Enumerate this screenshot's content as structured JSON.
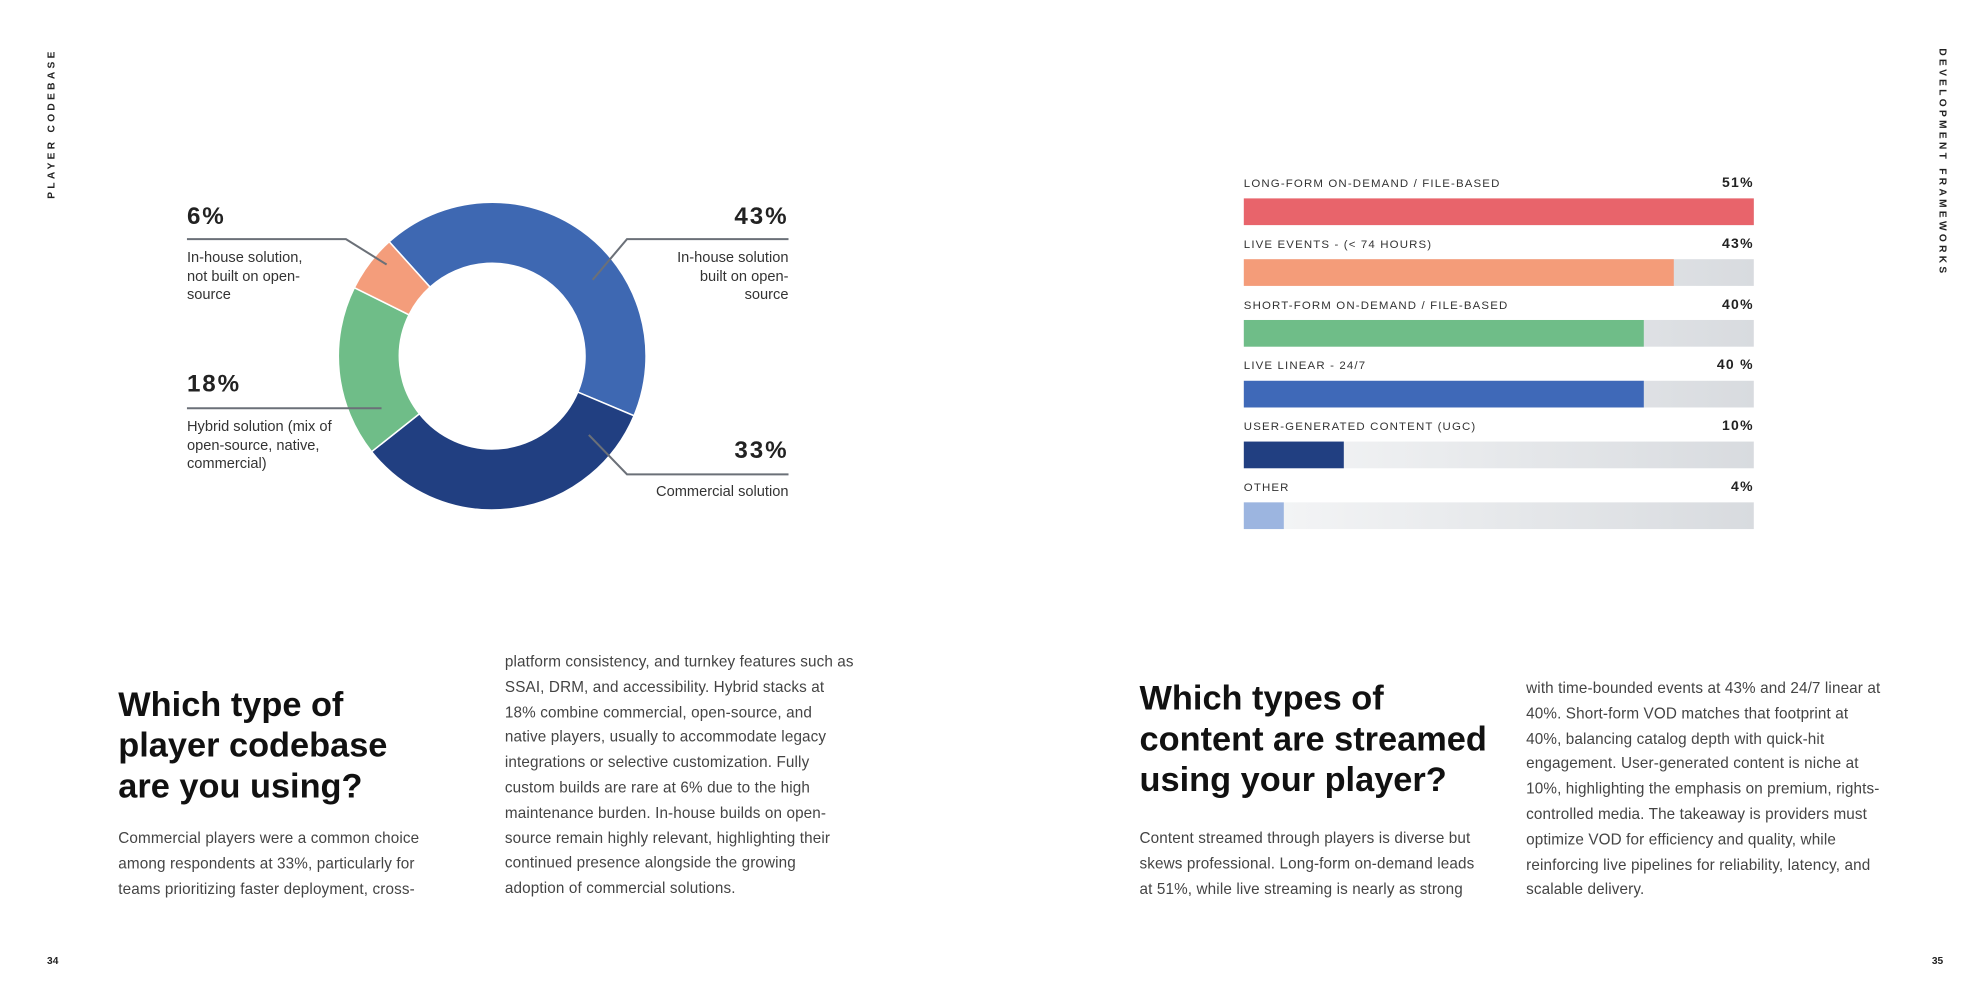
{
  "side_labels": {
    "left": "PLAYER CODEBASE",
    "right": "DEVELOPMENT FRAMEWORKS"
  },
  "page_numbers": [
    "34",
    "35"
  ],
  "chart_data": [
    {
      "type": "donut",
      "categories": [
        "In-house solution built on open-source",
        "Commercial solution",
        "Hybrid solution (mix of open-source, native, commercial)",
        "In-house solution, not built on open-source"
      ],
      "values": [
        43,
        33,
        18,
        6
      ],
      "value_labels": [
        "43%",
        "33%",
        "18%",
        "6%"
      ],
      "colors": [
        "#3e68b2",
        "#213f81",
        "#6fbd88",
        "#f49d7b"
      ]
    },
    {
      "type": "bar",
      "orientation": "horizontal",
      "categories": [
        "LONG-FORM ON-DEMAND / FILE-BASED",
        "LIVE EVENTS - (< 74 HOURS)",
        "SHORT-FORM ON-DEMAND / FILE-BASED",
        "LIVE LINEAR - 24/7",
        "USER-GENERATED CONTENT (UGC)",
        "OTHER"
      ],
      "values": [
        51,
        43,
        40,
        40,
        10,
        4
      ],
      "value_labels": [
        "51%",
        "43%",
        "40%",
        "40 %",
        "10%",
        "4%"
      ],
      "colors": [
        "#e8646b",
        "#f49c79",
        "#6fbd88",
        "#3f69b8",
        "#213f81",
        "#9cb5e0"
      ],
      "xlim": [
        0,
        51
      ]
    }
  ],
  "sections": [
    {
      "title": "Which type of player codebase are you using?",
      "columns": [
        "Commercial players were a common choice among respondents at 33%, particularly for teams prioritizing faster deployment, cross-",
        "platform consistency, and turnkey features such as SSAI, DRM, and accessibility. Hybrid stacks at 18% combine commercial, open-source, and native players, usually to accommodate legacy integrations or selective customization. Fully custom builds are rare at 6% due to the high maintenance burden. In-house builds on open-source remain highly relevant, highlighting their continued presence alongside the growing adoption of commercial solutions."
      ]
    },
    {
      "title": "Which types of content are streamed using your player?",
      "columns": [
        "Content streamed through players is diverse but skews professional. Long-form on-demand leads at 51%, while live streaming is nearly as strong",
        "with time-bounded events at 43% and 24/7 linear at 40%. Short-form VOD matches that footprint at 40%, balancing catalog depth with quick-hit engagement. User-generated content is niche at 10%, highlighting the emphasis on premium, rights-controlled media. The takeaway is providers must optimize VOD for efficiency and quality, while reinforcing live pipelines for reliability, latency, and scalable delivery."
      ]
    }
  ]
}
